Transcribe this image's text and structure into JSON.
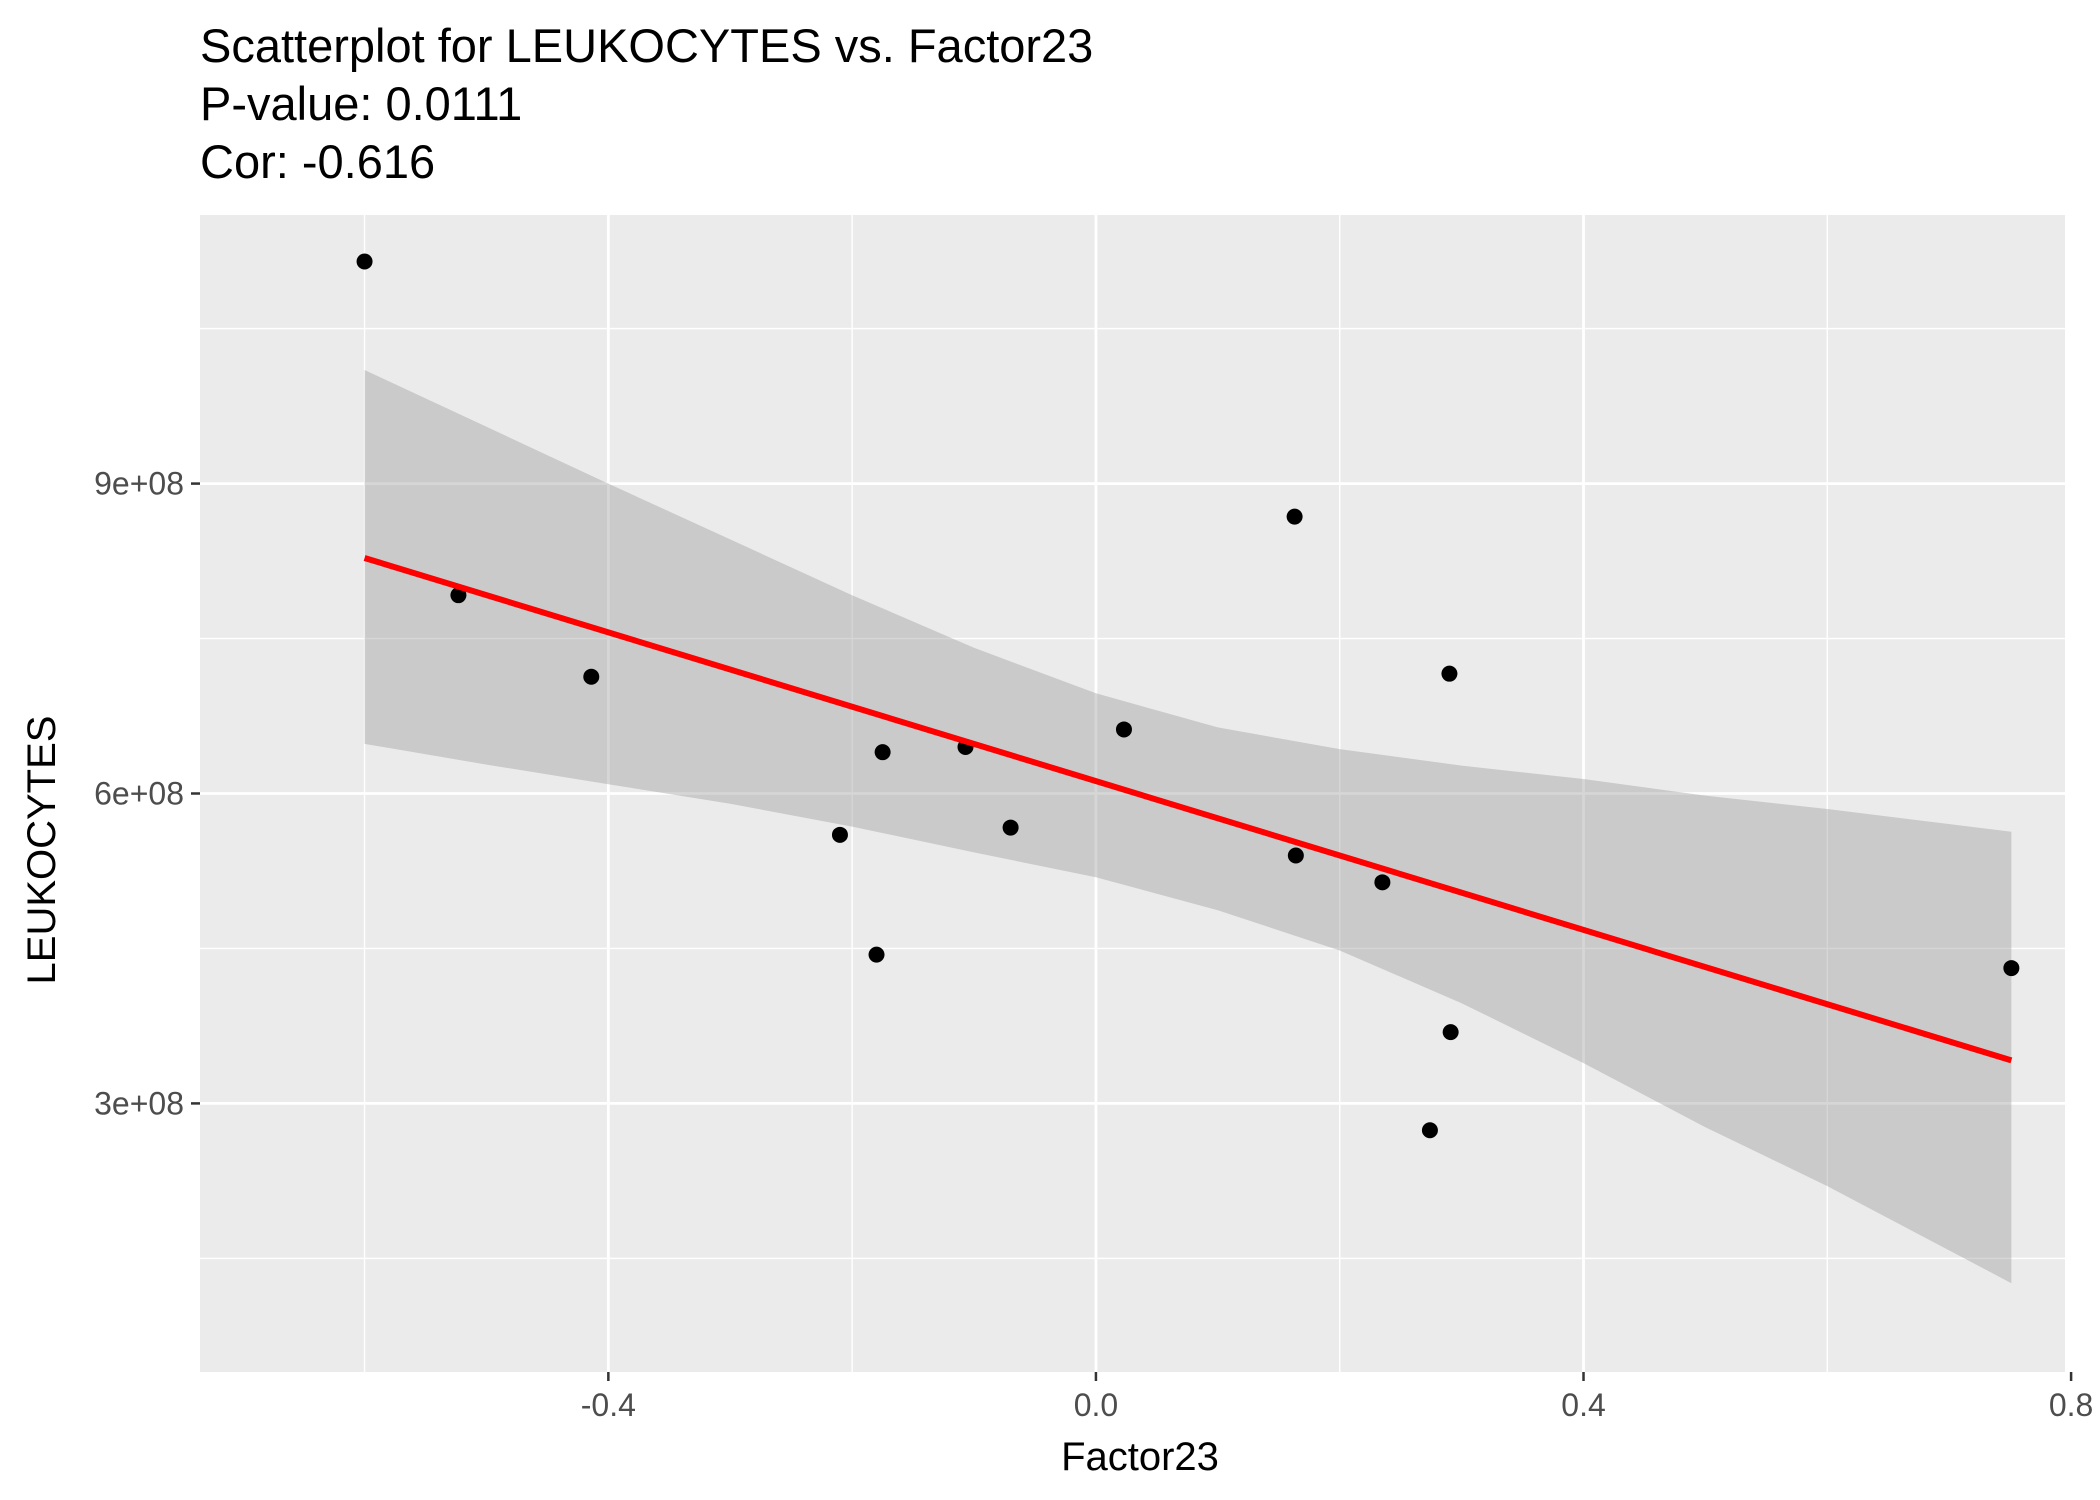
{
  "chart_data": {
    "type": "scatter",
    "title_lines": [
      "Scatterplot for LEUKOCYTES vs. Factor23",
      "P-value: 0.0111",
      "Cor: -0.616"
    ],
    "xlabel": "Factor23",
    "ylabel": "LEUKOCYTES",
    "xlim": [
      -0.735,
      0.795
    ],
    "ylim": [
      40000000,
      1160000000
    ],
    "x_ticks": [
      {
        "value": -0.4,
        "label": "-0.4"
      },
      {
        "value": 0.0,
        "label": "0.0"
      },
      {
        "value": 0.4,
        "label": "0.4"
      },
      {
        "value": 0.8,
        "label": "0.8"
      }
    ],
    "x_minor_ticks": [
      -0.6,
      -0.2,
      0.2,
      0.6
    ],
    "y_ticks": [
      {
        "value": 300000000,
        "label": "3e+08"
      },
      {
        "value": 600000000,
        "label": "6e+08"
      },
      {
        "value": 900000000,
        "label": "9e+08"
      }
    ],
    "y_minor_ticks": [
      150000000,
      450000000,
      750000000,
      1050000000
    ],
    "grid": true,
    "points": [
      {
        "x": -0.6,
        "y": 1115000000
      },
      {
        "x": -0.523,
        "y": 792000000
      },
      {
        "x": -0.414,
        "y": 713000000
      },
      {
        "x": -0.21,
        "y": 560000000
      },
      {
        "x": -0.18,
        "y": 444000000
      },
      {
        "x": -0.175,
        "y": 640000000
      },
      {
        "x": -0.107,
        "y": 645000000
      },
      {
        "x": -0.07,
        "y": 567000000
      },
      {
        "x": 0.023,
        "y": 662000000
      },
      {
        "x": 0.163,
        "y": 868000000
      },
      {
        "x": 0.164,
        "y": 540000000
      },
      {
        "x": 0.235,
        "y": 514000000
      },
      {
        "x": 0.274,
        "y": 274000000
      },
      {
        "x": 0.29,
        "y": 716000000
      },
      {
        "x": 0.291,
        "y": 369000000
      },
      {
        "x": 0.751,
        "y": 431000000
      }
    ],
    "regression": {
      "x_range": [
        -0.6,
        0.751
      ],
      "intercept": 612000000,
      "slope": -360000000,
      "color": "#ff0000"
    },
    "confidence_band": {
      "x": [
        -0.6,
        -0.5,
        -0.4,
        -0.3,
        -0.2,
        -0.1,
        0.0,
        0.1,
        0.2,
        0.3,
        0.4,
        0.5,
        0.6,
        0.751
      ],
      "upper": [
        1010000000,
        955000000,
        900000000,
        846000000,
        792000000,
        741000000,
        697000000,
        664000000,
        643000000,
        627000000,
        614000000,
        598000000,
        585000000,
        563000000
      ],
      "lower": [
        648000000,
        628000000,
        609000000,
        590000000,
        568000000,
        543000000,
        519000000,
        487000000,
        448000000,
        397000000,
        339000000,
        277000000,
        220000000,
        126000000
      ],
      "color": "#999999"
    },
    "colors": {
      "panel": "#ebebeb",
      "grid": "#ffffff",
      "point": "#000000"
    }
  }
}
